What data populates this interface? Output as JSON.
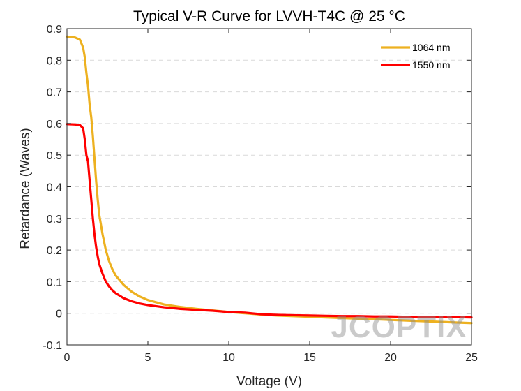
{
  "chart_data": {
    "type": "line",
    "title": "Typical V-R Curve for LVVH-T4C @ 25 °C",
    "xlabel": "Voltage (V)",
    "ylabel": "Retardance (Waves)",
    "xlim": [
      0,
      25
    ],
    "ylim": [
      -0.1,
      0.9
    ],
    "xticks": [
      0,
      5,
      10,
      15,
      20,
      25
    ],
    "yticks": [
      -0.1,
      0,
      0.1,
      0.2,
      0.3,
      0.4,
      0.5,
      0.6,
      0.7,
      0.8,
      0.9
    ],
    "ytick_labels": [
      "-0.1",
      "0",
      "0.1",
      "0.2",
      "0.3",
      "0.4",
      "0.5",
      "0.6",
      "0.7",
      "0.8",
      "0.9"
    ],
    "grid": "horizontal-dashed",
    "legend_position": "top-right",
    "series": [
      {
        "name": "1064 nm",
        "color": "#EDB120",
        "x": [
          0,
          0.5,
          0.8,
          1.0,
          1.1,
          1.2,
          1.3,
          1.4,
          1.5,
          1.6,
          1.7,
          1.8,
          1.9,
          2.0,
          2.2,
          2.4,
          2.6,
          2.8,
          3.0,
          3.5,
          4.0,
          4.5,
          5.0,
          6.0,
          7.0,
          8.0,
          9.0,
          10.0,
          11.0,
          12.0,
          13.0,
          14.0,
          15.0,
          16.0,
          17.0,
          18.0,
          19.0,
          20.0,
          21.0,
          22.0,
          23.0,
          24.0,
          25.0
        ],
        "y": [
          0.875,
          0.872,
          0.865,
          0.84,
          0.81,
          0.76,
          0.72,
          0.66,
          0.62,
          0.56,
          0.49,
          0.42,
          0.36,
          0.31,
          0.25,
          0.2,
          0.165,
          0.14,
          0.12,
          0.09,
          0.068,
          0.053,
          0.042,
          0.028,
          0.02,
          0.014,
          0.009,
          0.004,
          0.0,
          -0.004,
          -0.007,
          -0.009,
          -0.011,
          -0.013,
          -0.015,
          -0.017,
          -0.019,
          -0.021,
          -0.023,
          -0.025,
          -0.027,
          -0.029,
          -0.031
        ]
      },
      {
        "name": "1550 nm",
        "color": "#FF0000",
        "x": [
          0,
          0.5,
          0.8,
          1.0,
          1.1,
          1.2,
          1.3,
          1.4,
          1.5,
          1.6,
          1.7,
          1.8,
          1.9,
          2.0,
          2.2,
          2.4,
          2.6,
          2.8,
          3.0,
          3.5,
          4.0,
          4.5,
          5.0,
          6.0,
          7.0,
          8.0,
          9.0,
          10.0,
          10.5,
          11.0,
          12.0,
          13.0,
          14.0,
          15.0,
          16.0,
          17.0,
          18.0,
          19.0,
          20.0,
          21.0,
          22.0,
          23.0,
          24.0,
          25.0
        ],
        "y": [
          0.598,
          0.597,
          0.595,
          0.585,
          0.55,
          0.5,
          0.48,
          0.42,
          0.36,
          0.3,
          0.25,
          0.21,
          0.18,
          0.155,
          0.125,
          0.1,
          0.085,
          0.073,
          0.064,
          0.048,
          0.038,
          0.031,
          0.026,
          0.019,
          0.014,
          0.011,
          0.008,
          0.004,
          0.003,
          0.002,
          -0.003,
          -0.005,
          -0.006,
          -0.007,
          -0.008,
          -0.009,
          -0.009,
          -0.01,
          -0.01,
          -0.011,
          -0.011,
          -0.012,
          -0.012,
          -0.013
        ]
      }
    ]
  },
  "watermark": "JCOPTIX"
}
